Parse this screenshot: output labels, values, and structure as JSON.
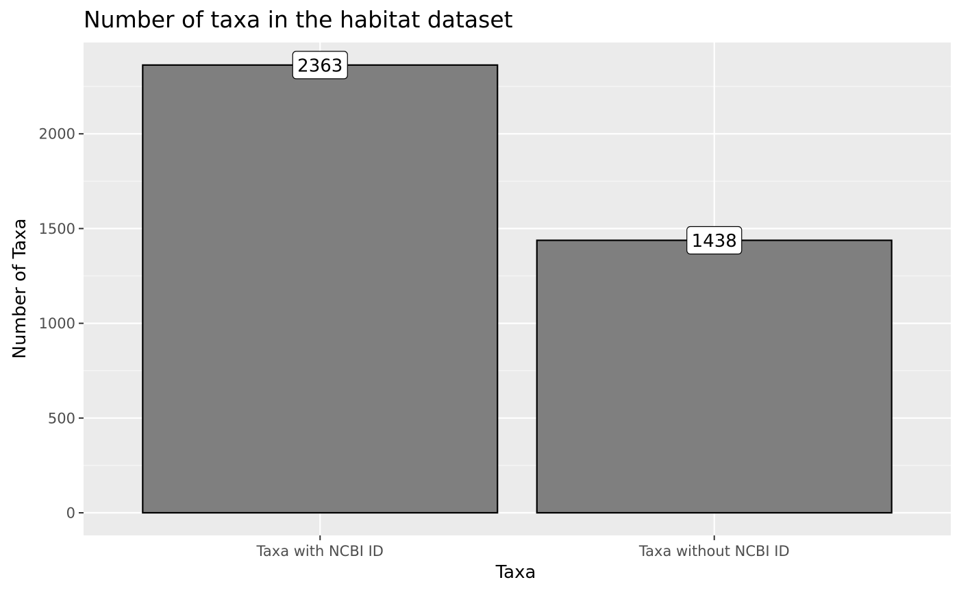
{
  "chart_data": {
    "type": "bar",
    "title": "Number of taxa in the habitat dataset",
    "xlabel": "Taxa",
    "ylabel": "Number of Taxa",
    "categories": [
      "Taxa with NCBI ID",
      "Taxa without NCBI ID"
    ],
    "values": [
      2363,
      1438
    ],
    "data_labels": [
      "2363",
      "1438"
    ],
    "ylim": [
      0,
      2480
    ],
    "yticks": [
      0,
      500,
      1000,
      1500,
      2000
    ],
    "ytick_labels": [
      "0",
      "500",
      "1000",
      "1500",
      "2000"
    ],
    "grid": true,
    "legend": "none"
  },
  "colors": {
    "panel_background": "#ebebeb",
    "grid_major": "#ffffff",
    "grid_minor": "#f7f7f7",
    "bar_fill": "#7f7f7f",
    "bar_outline": "#000000",
    "label_box_fill": "#ffffff",
    "tick_text": "#4d4d4d",
    "tick_mark": "#333333"
  }
}
